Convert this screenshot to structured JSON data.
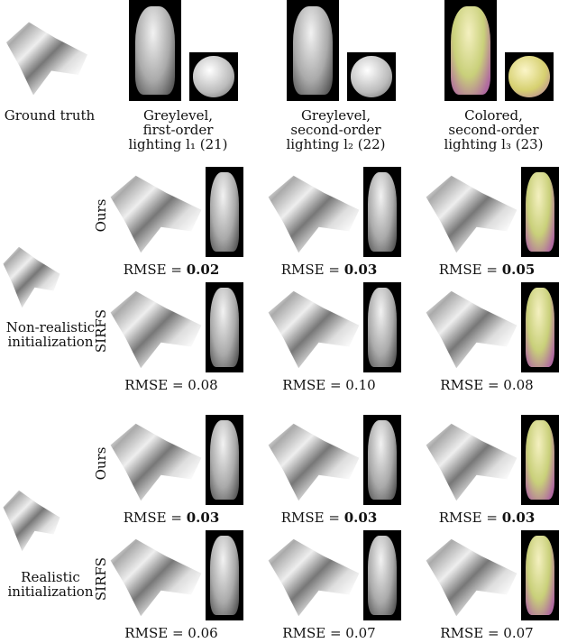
{
  "ground_truth_label": "Ground truth",
  "columns": [
    {
      "line1": "Greylevel,",
      "line2": "first-order",
      "line3": "lighting l₁ (21)",
      "colored": false
    },
    {
      "line1": "Greylevel,",
      "line2": "second-order",
      "line3": "lighting l₂ (22)",
      "colored": false
    },
    {
      "line1": "Colored,",
      "line2": "second-order",
      "line3": "lighting l₃ (23)",
      "colored": true
    }
  ],
  "blocks": [
    {
      "init_line1": "Non-realistic",
      "init_line2": "initialization",
      "rows": [
        {
          "method": "Ours",
          "rmse_prefix": "RMSE = ",
          "values": [
            "0.02",
            "0.03",
            "0.05"
          ],
          "bold": true
        },
        {
          "method": "SIRFS",
          "rmse_prefix": "RMSE = ",
          "values": [
            "0.08",
            "0.10",
            "0.08"
          ],
          "bold": false
        }
      ]
    },
    {
      "init_line1": "Realistic",
      "init_line2": "initialization",
      "rows": [
        {
          "method": "Ours",
          "rmse_prefix": "RMSE = ",
          "values": [
            "0.03",
            "0.03",
            "0.03"
          ],
          "bold": true
        },
        {
          "method": "SIRFS",
          "rmse_prefix": "RMSE = ",
          "values": [
            "0.06",
            "0.07",
            "0.07"
          ],
          "bold": false
        }
      ]
    }
  ]
}
